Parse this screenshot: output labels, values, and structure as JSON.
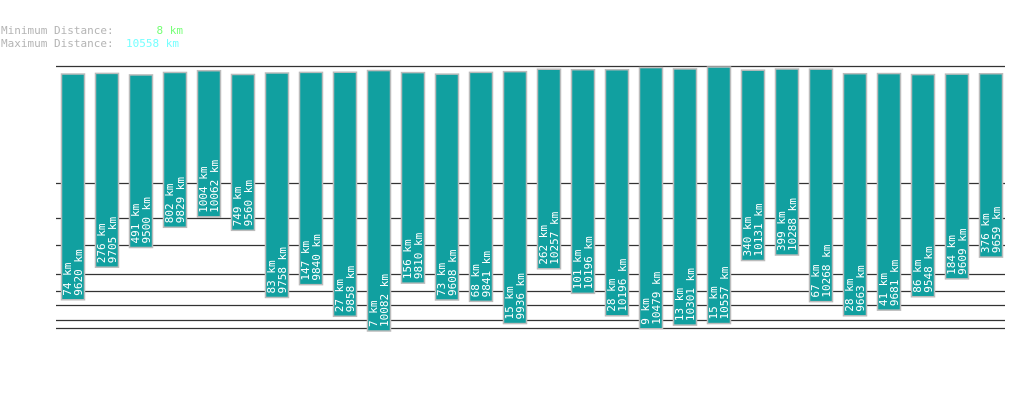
{
  "header": {
    "min_label": "Minimum Distance:",
    "min_value": "8 km",
    "min_color": "#77ff77",
    "max_label": "Maximum Distance:",
    "max_value": "10558 km",
    "max_color": "#77ffff"
  },
  "chart_data": {
    "type": "bar",
    "bar_color": "#11a0a0",
    "unit": "km",
    "series": [
      {
        "key": "min",
        "values": [
          74,
          276,
          491,
          802,
          1004,
          749,
          83,
          147,
          27,
          7,
          156,
          73,
          68,
          15,
          262,
          101,
          28,
          9,
          13,
          15,
          340,
          399,
          67,
          28,
          41,
          86,
          184,
          376
        ]
      },
      {
        "key": "max",
        "values": [
          9620,
          9705,
          9500,
          9829,
          10062,
          9560,
          9758,
          9840,
          9858,
          10082,
          9810,
          9608,
          9841,
          9936,
          10257,
          10196,
          10196,
          10479,
          10301,
          10557,
          10131,
          10288,
          10268,
          9663,
          9681,
          9548,
          9609,
          9659
        ]
      }
    ]
  }
}
